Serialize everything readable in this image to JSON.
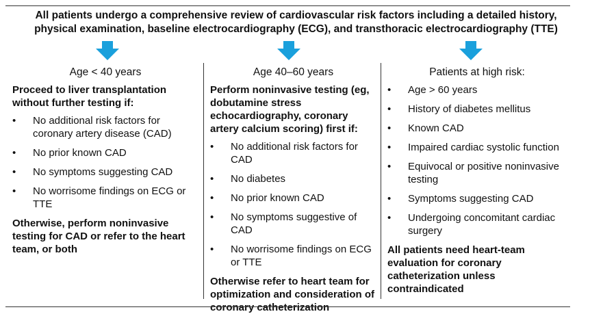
{
  "intro": "All patients undergo a comprehensive review of cardiovascular risk factors including a detailed history, physical examination, baseline electrocardiography (ECG), and transthoracic electrocardiography (TTE)",
  "colors": {
    "arrow": "#1aa0dc",
    "rule": "#333333",
    "text": "#111111"
  },
  "icons": {
    "arrow": "down-arrow-icon",
    "bullet": "•"
  },
  "columns": [
    {
      "title": "Age < 40 years",
      "lead": "Proceed to liver transplantation without further testing if:",
      "items": [
        "No additional risk factors for coronary artery disease (CAD)",
        "No prior known CAD",
        "No symptoms suggesting CAD",
        "No worrisome findings on ECG or TTE"
      ],
      "closing": "Otherwise, perform noninvasive testing for CAD or refer to the heart team, or both"
    },
    {
      "title": "Age 40–60 years",
      "lead": "Perform noninvasive testing (eg, dobutamine stress echocardiography, coronary artery calcium scoring) first if:",
      "items": [
        "No additional risk factors for CAD",
        "No diabetes",
        "No prior known CAD",
        "No symptoms suggestive of CAD",
        "No worrisome findings on ECG or TTE"
      ],
      "closing": "Otherwise refer to heart team for optimization and consideration of coronary catheterization"
    },
    {
      "title": "Patients at high risk:",
      "lead": "",
      "items": [
        "Age > 60 years",
        "History of diabetes mellitus",
        "Known CAD",
        "Impaired cardiac systolic function",
        "Equivocal or positive noninvasive testing",
        "Symptoms suggesting CAD",
        "Undergoing concomitant cardiac surgery"
      ],
      "closing": "All patients need heart-team evaluation for coronary catheterization unless contraindicated"
    }
  ]
}
